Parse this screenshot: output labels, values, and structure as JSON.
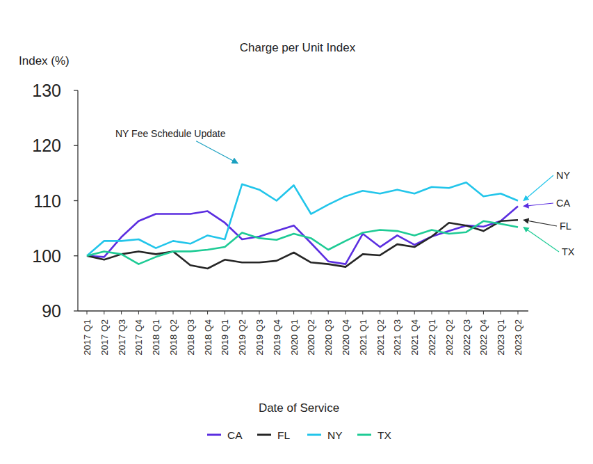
{
  "chart_data": {
    "type": "line",
    "title": "Charge per Unit Index",
    "y_label": "Index (%)",
    "x_label": "Date of Service",
    "categories": [
      "2017 Q1",
      "2017 Q2",
      "2017 Q3",
      "2017 Q4",
      "2018 Q1",
      "2018 Q2",
      "2018 Q3",
      "2018 Q4",
      "2019 Q1",
      "2019 Q2",
      "2019 Q3",
      "2019 Q4",
      "2020 Q1",
      "2020 Q2",
      "2020 Q3",
      "2020 Q4",
      "2021 Q1",
      "2021 Q2",
      "2021 Q3",
      "2021 Q4",
      "2022 Q1",
      "2022 Q2",
      "2022 Q3",
      "2022 Q4",
      "2023 Q1",
      "2023 Q2"
    ],
    "series": [
      {
        "name": "CA",
        "color": "#5b2ee0",
        "values": [
          100,
          99.8,
          103.4,
          106.3,
          107.6,
          107.6,
          107.6,
          108.1,
          106,
          103,
          103.5,
          104.5,
          105.5,
          102.3,
          99,
          98.5,
          104,
          101.6,
          103.7,
          102,
          103.5,
          104.5,
          105.5,
          105.3,
          106.3,
          109
        ]
      },
      {
        "name": "FL",
        "color": "#262626",
        "values": [
          100,
          99.3,
          100.3,
          100.8,
          100.3,
          100.8,
          98.3,
          97.7,
          99.3,
          98.8,
          98.8,
          99.1,
          100.6,
          98.8,
          98.5,
          98,
          100.3,
          100.1,
          102.1,
          101.6,
          103.5,
          106,
          105.5,
          104.5,
          106.3,
          106.5
        ]
      },
      {
        "name": "NY",
        "color": "#22c5ea",
        "values": [
          100,
          102.7,
          102.7,
          103,
          101.4,
          102.7,
          102.2,
          103.7,
          103,
          113,
          112,
          110,
          112.8,
          107.6,
          109.3,
          110.8,
          111.8,
          111.3,
          112,
          111.3,
          112.5,
          112.3,
          113.3,
          110.8,
          111.3,
          110
        ]
      },
      {
        "name": "TX",
        "color": "#1ecb95",
        "values": [
          100,
          100.8,
          100.3,
          98.5,
          99.8,
          100.8,
          100.8,
          101.1,
          101.6,
          104.2,
          103.2,
          102.9,
          104,
          103.2,
          101.1,
          102.7,
          104.2,
          104.7,
          104.5,
          103.7,
          104.7,
          104,
          104.3,
          106.3,
          105.8,
          105.2
        ]
      }
    ],
    "annotations": [
      {
        "text": "NY Fee Schedule Update",
        "x": "2019 Q2",
        "series": "NY"
      }
    ],
    "ylim": [
      90,
      130
    ],
    "yticks": [
      90,
      100,
      110,
      120,
      130
    ],
    "grid": false,
    "legend": "bottom"
  }
}
